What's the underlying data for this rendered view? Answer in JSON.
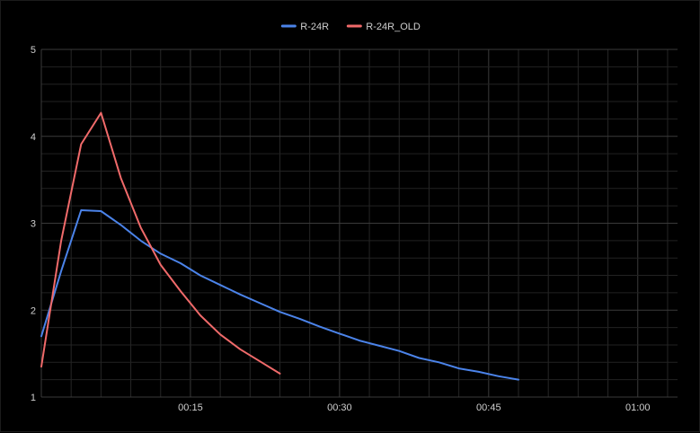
{
  "chart_data": {
    "type": "line",
    "title": "",
    "xlabel": "",
    "ylabel": "",
    "x_unit": "minutes",
    "xlim": [
      0,
      64
    ],
    "ylim": [
      1,
      5
    ],
    "y_ticks": [
      1,
      2,
      3,
      4,
      5
    ],
    "y_tick_labels": [
      "1",
      "2",
      "3",
      "4",
      "5"
    ],
    "x_ticks": [
      15,
      30,
      45,
      60
    ],
    "x_tick_labels": [
      "00:15",
      "00:30",
      "00:45",
      "01:00"
    ],
    "grid": true,
    "grid_minor": true,
    "legend_position": "top-center",
    "background": "#000000",
    "series": [
      {
        "name": "R-24R",
        "color": "#4b83e9",
        "x": [
          0,
          2,
          4,
          6,
          8,
          10,
          12,
          14,
          16,
          18,
          20,
          22,
          24,
          26,
          28,
          30,
          32,
          34,
          36,
          38,
          40,
          42,
          44,
          46,
          48
        ],
        "y": [
          1.7,
          2.45,
          3.15,
          3.14,
          2.98,
          2.8,
          2.65,
          2.54,
          2.4,
          2.29,
          2.18,
          2.08,
          1.98,
          1.9,
          1.81,
          1.73,
          1.65,
          1.59,
          1.53,
          1.45,
          1.4,
          1.33,
          1.29,
          1.24,
          1.2
        ]
      },
      {
        "name": "R-24R_OLD",
        "color": "#f06a6a",
        "x": [
          0,
          2,
          4,
          6,
          8,
          10,
          12,
          14,
          16,
          18,
          20,
          22,
          24
        ],
        "y": [
          1.35,
          2.8,
          3.91,
          4.27,
          3.52,
          2.95,
          2.52,
          2.22,
          1.94,
          1.72,
          1.55,
          1.41,
          1.27
        ]
      }
    ]
  }
}
